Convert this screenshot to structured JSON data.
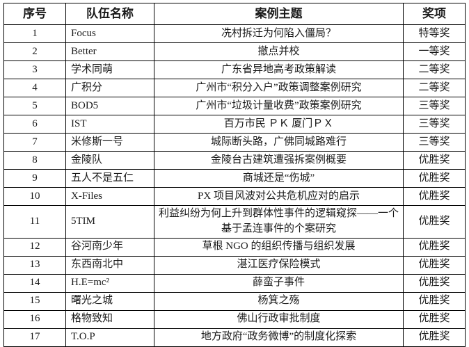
{
  "table": {
    "headers": [
      "序号",
      "队伍名称",
      "案例主题",
      "奖项"
    ],
    "rows": [
      {
        "no": "1",
        "team": "Focus",
        "topic": "冼村拆迁为何陷入僵局？",
        "award": "特等奖"
      },
      {
        "no": "2",
        "team": "Better",
        "topic": "撤点并校",
        "award": "一等奖"
      },
      {
        "no": "3",
        "team": "学术同萌",
        "topic": "广东省异地高考政策解读",
        "award": "二等奖"
      },
      {
        "no": "4",
        "team": "广积分",
        "topic": "广州市“积分入户”政策调整案例研究",
        "award": "二等奖"
      },
      {
        "no": "5",
        "team": "BOD5",
        "topic": "广州市“垃圾计量收费”政策案例研究",
        "award": "三等奖"
      },
      {
        "no": "6",
        "team": "IST",
        "topic": "百万市民 ＰＫ 厦门ＰＸ",
        "award": "三等奖"
      },
      {
        "no": "7",
        "team": "米修斯一号",
        "topic": "城际断头路，广佛同城路难行",
        "award": "三等奖"
      },
      {
        "no": "8",
        "team": "金陵队",
        "topic": "金陵台古建筑遭强拆案例概要",
        "award": "优胜奖"
      },
      {
        "no": "9",
        "team": "五人不是五仁",
        "topic": "商城还是“伤城”",
        "award": "优胜奖"
      },
      {
        "no": "10",
        "team": "X-Files",
        "topic": "PX 项目风波对公共危机应对的启示",
        "award": "优胜奖"
      },
      {
        "no": "11",
        "team": "5TIM",
        "topic": "利益纠纷为何上升到群体性事件的逻辑窥探——一个基于孟连事件的个案研究",
        "award": "优胜奖"
      },
      {
        "no": "12",
        "team": "谷河南少年",
        "topic": "草根 NGO 的组织传播与组织发展",
        "award": "优胜奖"
      },
      {
        "no": "13",
        "team": "东西南北中",
        "topic": "湛江医疗保险模式",
        "award": "优胜奖"
      },
      {
        "no": "14",
        "team": "H.E=mc²",
        "topic": "薛蛮子事件",
        "award": "优胜奖"
      },
      {
        "no": "15",
        "team": "曙光之城",
        "topic": "杨箕之殇",
        "award": "优胜奖"
      },
      {
        "no": "16",
        "team": "格物致知",
        "topic": "佛山行政审批制度",
        "award": "优胜奖"
      },
      {
        "no": "17",
        "team": "T.O.P",
        "topic": "地方政府“政务微博”的制度化探索",
        "award": "优胜奖"
      }
    ]
  },
  "colors": {
    "text": "#1a1a1a",
    "border": "#000000",
    "background": "#ffffff"
  }
}
